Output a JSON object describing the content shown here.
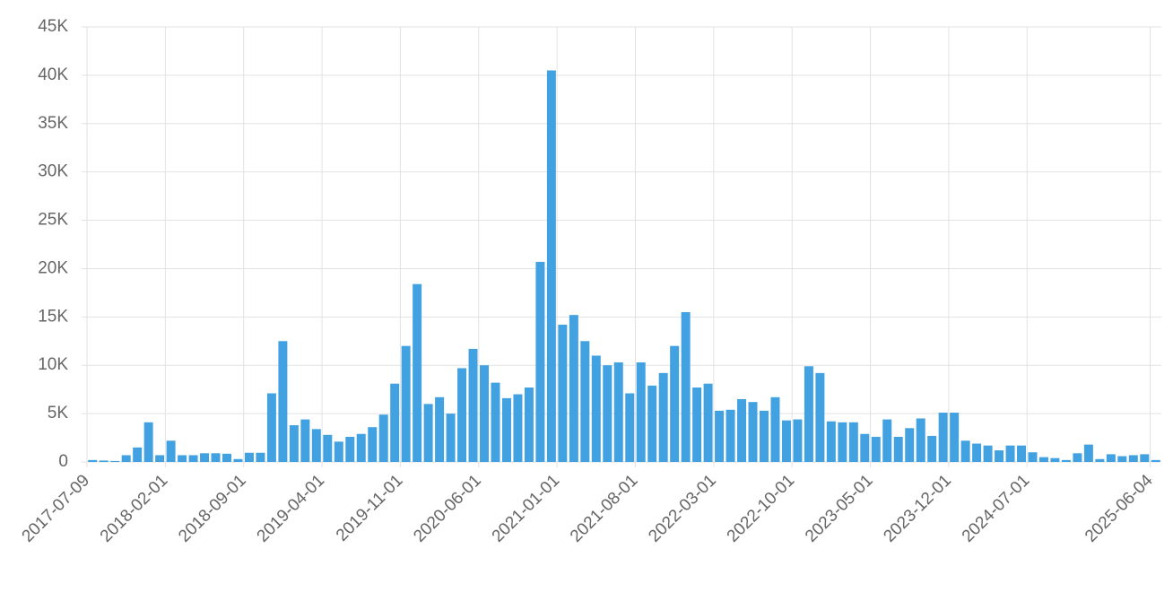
{
  "chart_data": {
    "type": "bar",
    "categories": [
      "2017-07-09",
      null,
      null,
      null,
      null,
      null,
      null,
      "2018-02-01",
      null,
      null,
      null,
      null,
      null,
      null,
      "2018-09-01",
      null,
      null,
      null,
      null,
      null,
      null,
      "2019-04-01",
      null,
      null,
      null,
      null,
      null,
      null,
      "2019-11-01",
      null,
      null,
      null,
      null,
      null,
      null,
      "2020-06-01",
      null,
      null,
      null,
      null,
      null,
      null,
      "2021-01-01",
      null,
      null,
      null,
      null,
      null,
      null,
      "2021-08-01",
      null,
      null,
      null,
      null,
      null,
      null,
      "2022-03-01",
      null,
      null,
      null,
      null,
      null,
      null,
      "2022-10-01",
      null,
      null,
      null,
      null,
      null,
      null,
      "2023-05-01",
      null,
      null,
      null,
      null,
      null,
      null,
      "2023-12-01",
      null,
      null,
      null,
      null,
      null,
      null,
      "2024-07-01",
      null,
      null,
      null,
      null,
      null,
      null,
      null,
      null,
      null,
      null,
      "2025-06-04"
    ],
    "values": [
      200,
      150,
      100,
      700,
      1500,
      4100,
      700,
      2200,
      700,
      700,
      900,
      900,
      850,
      300,
      950,
      950,
      7100,
      12500,
      3800,
      4400,
      3400,
      2800,
      2100,
      2600,
      2900,
      3600,
      4900,
      8100,
      12000,
      18400,
      6000,
      6700,
      5000,
      9700,
      11700,
      10000,
      8200,
      6600,
      7000,
      7700,
      20700,
      40500,
      14200,
      15200,
      12500,
      11000,
      10000,
      10300,
      7100,
      10300,
      7900,
      9200,
      12000,
      15500,
      7700,
      8100,
      5300,
      5400,
      6500,
      6200,
      5300,
      6700,
      4300,
      4400,
      9900,
      9200,
      4200,
      4100,
      4100,
      2900,
      2600,
      4400,
      2600,
      3500,
      4500,
      2700,
      5100,
      5100,
      2200,
      1900,
      1700,
      1200,
      1700,
      1700,
      1000,
      500,
      400,
      200,
      900,
      1800,
      300,
      800,
      600,
      700,
      800,
      200
    ],
    "color": "#42a1e1",
    "ylim": [
      0,
      45000
    ],
    "yticks": [
      0,
      {
        "value": 5000,
        "label": "5K"
      },
      {
        "value": 10000,
        "label": "10K"
      },
      {
        "value": 15000,
        "label": "15K"
      },
      {
        "value": 20000,
        "label": "20K"
      },
      {
        "value": 25000,
        "label": "25K"
      },
      {
        "value": 30000,
        "label": "30K"
      },
      {
        "value": 35000,
        "label": "35K"
      },
      {
        "value": 40000,
        "label": "40K"
      },
      {
        "value": 45000,
        "label": "45K"
      }
    ],
    "grid": true
  }
}
